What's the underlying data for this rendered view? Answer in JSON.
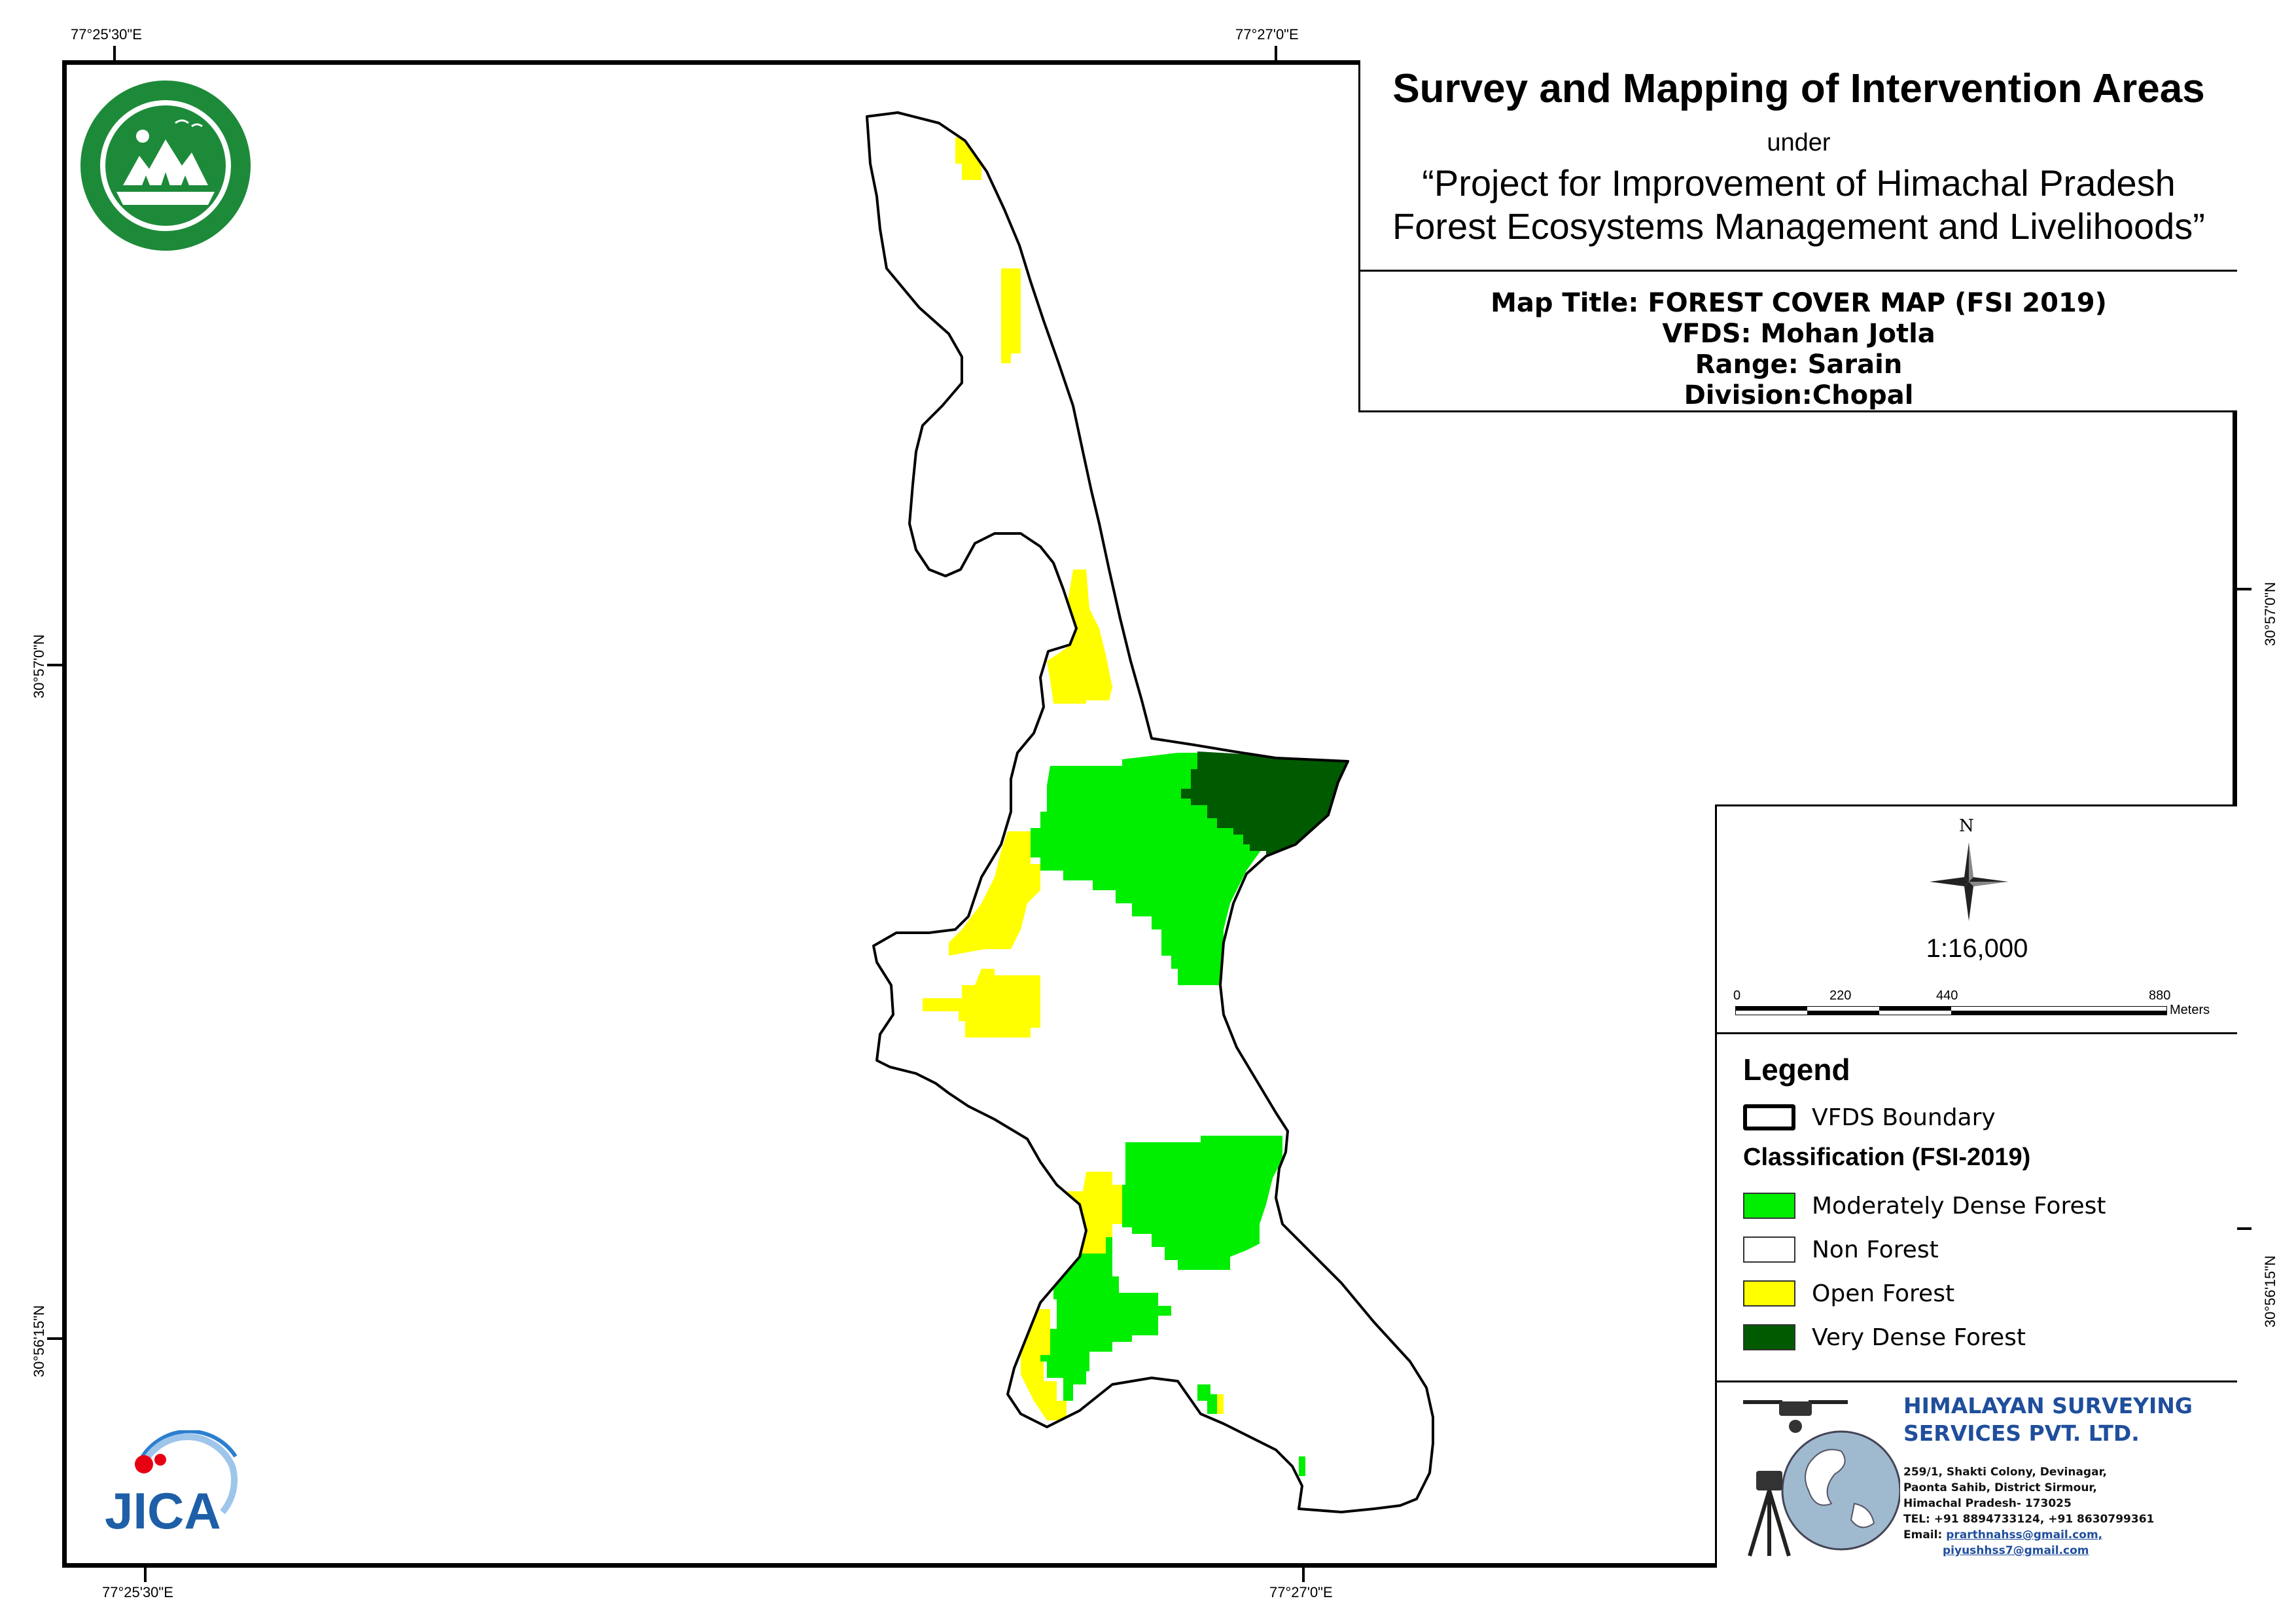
{
  "coords": {
    "top_left": "77°25'30\"E",
    "top_right": "77°27'0\"E",
    "bottom_left": "77°25'30\"E",
    "bottom_right": "77°27'0\"E",
    "left_top": "30°57'0\"N",
    "left_bottom": "30°56'15\"N",
    "right_top": "30°57'0\"N",
    "right_bottom": "30°56'15\"N"
  },
  "title": {
    "main": "Survey and Mapping of Intervention Areas",
    "under": "under",
    "project_line1": "“Project for Improvement of Himachal Pradesh",
    "project_line2": "Forest Ecosystems Management and Livelihoods”"
  },
  "meta": {
    "map_title": "Map Title: FOREST COVER MAP (FSI 2019)",
    "vfds": "VFDS: Mohan Jotla",
    "range": "Range: Sarain",
    "division": "Division:Chopal"
  },
  "north_arrow": {
    "label": "N",
    "icon": "compass-rose-icon"
  },
  "scale": {
    "ratio": "1:16,000",
    "ticks": [
      "0",
      "220",
      "440",
      "880"
    ],
    "unit": "Meters"
  },
  "legend": {
    "title": "Legend",
    "boundary_label": "VFDS Boundary",
    "classification_title": "Classification (FSI-2019)",
    "items": [
      {
        "label": "Moderately Dense Forest",
        "color": "#00ee00"
      },
      {
        "label": "Non Forest",
        "color": "#ffffff"
      },
      {
        "label": "Open Forest",
        "color": "#ffff00"
      },
      {
        "label": "Very Dense Forest",
        "color": "#005a00"
      }
    ]
  },
  "company": {
    "name_line1": "HIMALAYAN SURVEYING",
    "name_line2": "SERVICES PVT. LTD.",
    "address1": "259/1, Shakti Colony, Devinagar,",
    "address2": "Paonta Sahib, District Sirmour,",
    "address3": "Himachal Pradesh- 173025",
    "tel": "TEL: +91 8894733124, +91 8630799361",
    "email_label": "Email:",
    "email1": "prarthnahss@gmail.com,",
    "email2": "piyushhss7@gmail.com",
    "name_color": "#1f4e9c"
  },
  "logos": {
    "forest_dept": "forest-department-logo",
    "jica": "jica",
    "jica_color": "#1e5fa8"
  },
  "colors": {
    "boundary": "#000000",
    "moderately_dense": "#00ee00",
    "open": "#ffff00",
    "very_dense": "#005a00"
  }
}
